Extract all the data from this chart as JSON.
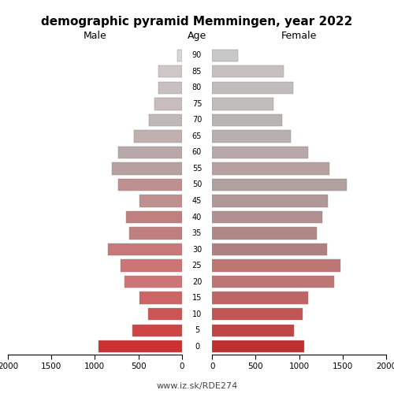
{
  "title": "demographic pyramid Memmingen, year 2022",
  "age_labels": [
    "0",
    "5",
    "10",
    "15",
    "20",
    "25",
    "30",
    "35",
    "40",
    "45",
    "50",
    "55",
    "60",
    "65",
    "70",
    "75",
    "80",
    "85",
    "90"
  ],
  "male": [
    960,
    570,
    390,
    490,
    660,
    700,
    850,
    600,
    640,
    490,
    730,
    800,
    730,
    550,
    380,
    310,
    270,
    270,
    55
  ],
  "female": [
    1060,
    940,
    1040,
    1100,
    1400,
    1470,
    1320,
    1200,
    1270,
    1330,
    1550,
    1350,
    1100,
    900,
    800,
    700,
    930,
    820,
    300
  ],
  "xlim": 2000,
  "xlabel_male": "Male",
  "xlabel_female": "Female",
  "xlabel_center": "Age",
  "footer": "www.iz.sk/RDE274",
  "male_colors": [
    "#cd3030",
    "#cd4545",
    "#cd5555",
    "#cd6565",
    "#cd7575",
    "#cd7575",
    "#c87878",
    "#c08080",
    "#c08080",
    "#c09090",
    "#c09090",
    "#b8a0a0",
    "#b8a8a8",
    "#c0b0b0",
    "#c0b8b8",
    "#c8bcbc",
    "#c8c0c0",
    "#d0c8c8",
    "#d8d8d8"
  ],
  "female_colors": [
    "#c03030",
    "#c04545",
    "#c05555",
    "#c06565",
    "#c07575",
    "#c07575",
    "#b08080",
    "#b08888",
    "#b09090",
    "#b09898",
    "#b0a0a0",
    "#b8a0a0",
    "#b8a8a8",
    "#b8b0b0",
    "#b8b4b4",
    "#c0bcbc",
    "#c0bcbc",
    "#c8c0c0",
    "#c8c8c8"
  ],
  "bg_color": "#ffffff",
  "bar_height": 0.75
}
